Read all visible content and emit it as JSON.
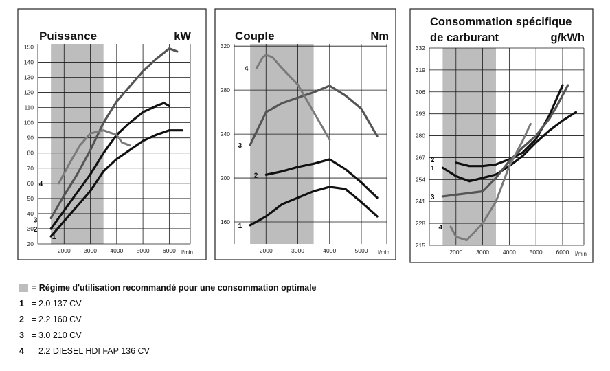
{
  "chart_data": [
    {
      "type": "line",
      "title": "Puissance",
      "unit": "kW",
      "xlabel": "l/min",
      "xlim": [
        1000,
        6800
      ],
      "ylim": [
        20,
        152
      ],
      "xticks": [
        2000,
        3000,
        4000,
        5000,
        6000
      ],
      "yticks": [
        20,
        30,
        40,
        50,
        60,
        70,
        80,
        90,
        100,
        110,
        120,
        130,
        140,
        150
      ],
      "ytick_labels": [
        "20",
        "30",
        "40",
        "50",
        "60",
        "70",
        "80",
        "90",
        "100",
        "110",
        "120",
        "130",
        "140",
        "150"
      ],
      "shaded_range": [
        1500,
        3500
      ],
      "series": [
        {
          "name": "1",
          "x": [
            1500,
            2000,
            2500,
            3000,
            3500,
            4000,
            4500,
            5000,
            5500,
            6000,
            6500
          ],
          "y": [
            25,
            35,
            45,
            55,
            68,
            76,
            82,
            88,
            92,
            95,
            95
          ]
        },
        {
          "name": "2",
          "x": [
            1500,
            2000,
            2500,
            3000,
            3500,
            4000,
            4500,
            5000,
            5500,
            5800,
            6000
          ],
          "y": [
            30,
            42,
            54,
            66,
            80,
            92,
            100,
            107,
            111,
            113,
            111
          ]
        },
        {
          "name": "3",
          "x": [
            1500,
            2000,
            2500,
            3000,
            3500,
            4000,
            4500,
            5000,
            5500,
            6000,
            6300
          ],
          "y": [
            37,
            52,
            66,
            82,
            100,
            114,
            124,
            134,
            142,
            149,
            147
          ]
        },
        {
          "name": "4",
          "x": [
            1800,
            2200,
            2600,
            3000,
            3500,
            4000,
            4200,
            4500
          ],
          "y": [
            60,
            73,
            85,
            93,
            95,
            92,
            87,
            85
          ]
        }
      ]
    },
    {
      "type": "line",
      "title": "Couple",
      "unit": "Nm",
      "xlabel": "l/min",
      "xlim": [
        1000,
        5800
      ],
      "ylim": [
        140,
        322
      ],
      "xticks": [
        2000,
        3000,
        4000,
        5000
      ],
      "yticks": [
        160,
        200,
        240,
        280,
        320
      ],
      "ytick_labels": [
        "160",
        "200",
        "240",
        "280",
        "320"
      ],
      "shaded_range": [
        1500,
        3500
      ],
      "series": [
        {
          "name": "1",
          "x": [
            1500,
            2000,
            2500,
            3000,
            3500,
            4000,
            4500,
            5000,
            5500
          ],
          "y": [
            157,
            165,
            176,
            182,
            188,
            192,
            190,
            178,
            165
          ]
        },
        {
          "name": "2",
          "x": [
            2000,
            2500,
            3000,
            3500,
            4000,
            4500,
            5000,
            5500
          ],
          "y": [
            203,
            206,
            210,
            213,
            217,
            208,
            196,
            182
          ]
        },
        {
          "name": "3",
          "x": [
            1500,
            2000,
            2500,
            3000,
            3500,
            4000,
            4500,
            5000,
            5500
          ],
          "y": [
            230,
            260,
            268,
            273,
            278,
            284,
            275,
            263,
            238
          ]
        },
        {
          "name": "4",
          "x": [
            1700,
            1900,
            2000,
            2200,
            2500,
            3000,
            3500,
            4000
          ],
          "y": [
            300,
            310,
            312,
            310,
            300,
            285,
            260,
            235
          ]
        }
      ]
    },
    {
      "type": "line",
      "title": "Consommation spécifique de carburant",
      "unit": "g/kWh",
      "xlabel": "l/min",
      "xlim": [
        1000,
        6800
      ],
      "ylim": [
        215,
        332
      ],
      "xticks": [
        2000,
        3000,
        4000,
        5000,
        6000
      ],
      "yticks": [
        215,
        228,
        241,
        254,
        267,
        280,
        293,
        306,
        319,
        332
      ],
      "ytick_labels": [
        "215",
        "228",
        "241",
        "254",
        "267",
        "280",
        "293",
        "306",
        "319",
        "332"
      ],
      "shaded_range": [
        1500,
        3500
      ],
      "series": [
        {
          "name": "1",
          "x": [
            1500,
            2000,
            2500,
            3000,
            3500,
            4000,
            4500,
            5000,
            5500,
            6000,
            6500
          ],
          "y": [
            261,
            256,
            253,
            255,
            257,
            262,
            268,
            276,
            283,
            289,
            294
          ]
        },
        {
          "name": "2",
          "x": [
            2000,
            2500,
            3000,
            3500,
            4000,
            4500,
            5000,
            5500,
            6000
          ],
          "y": [
            264,
            262,
            262,
            263,
            266,
            270,
            278,
            292,
            310
          ]
        },
        {
          "name": "3",
          "x": [
            1500,
            2000,
            2500,
            3000,
            3500,
            4000,
            4500,
            5000,
            5500,
            5800,
            6200
          ],
          "y": [
            244,
            245,
            246,
            247,
            255,
            265,
            273,
            280,
            290,
            298,
            310
          ]
        },
        {
          "name": "4",
          "x": [
            1800,
            2000,
            2400,
            3000,
            3500,
            4000,
            4500,
            4800
          ],
          "y": [
            226,
            220,
            218,
            228,
            241,
            262,
            277,
            287
          ]
        }
      ]
    }
  ],
  "legend": {
    "zone_text": "= Régime d'utilisation recommandé pour une consommation optimale",
    "items": [
      {
        "key": "1",
        "eq": "=",
        "text": "2.0 137 CV"
      },
      {
        "key": "2",
        "eq": "=",
        "text": "2.2 160 CV"
      },
      {
        "key": "3",
        "eq": "=",
        "text": "3.0 210 CV"
      },
      {
        "key": "4",
        "eq": "=",
        "text": "2.2 DIESEL HDI FAP 136 CV"
      }
    ]
  },
  "colors": {
    "shade": "#bdbdbd",
    "dark_line": "#111111",
    "mid_line": "#555555",
    "light_line": "#7a7a7a",
    "grid": "#1a1a1a"
  }
}
